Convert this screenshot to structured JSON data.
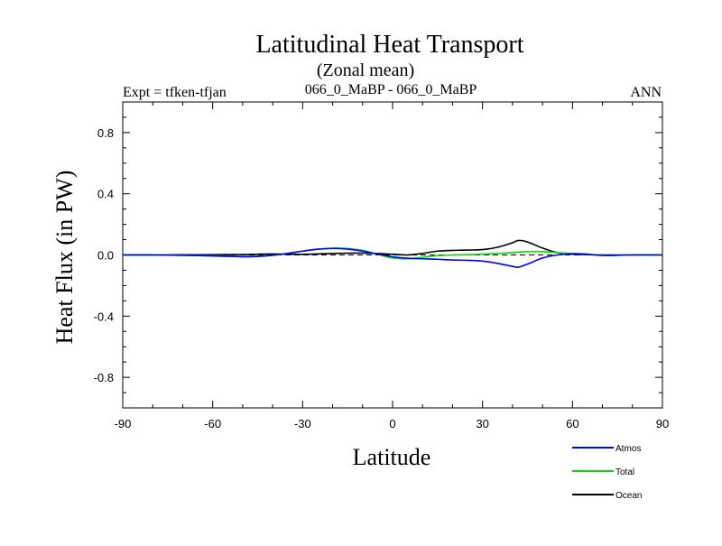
{
  "chart_data": {
    "type": "line",
    "title": "Latitudinal Heat Transport",
    "subtitle": "(Zonal mean)",
    "case_label": "066_0_MaBP - 066_0_MaBP",
    "expt_label": "Expt = tfken-tfjan",
    "season_label": "ANN",
    "xlabel": "Latitude",
    "ylabel": "Heat Flux (in PW)",
    "xlim": [
      -90,
      90
    ],
    "ylim": [
      -1.0,
      1.0
    ],
    "x_ticks": [
      -90,
      -60,
      -30,
      0,
      30,
      60,
      90
    ],
    "x_tick_labels": [
      "-90",
      "-60",
      "-30",
      "0",
      "30",
      "60",
      "90"
    ],
    "y_ticks": [
      -0.8,
      -0.4,
      0.0,
      0.4,
      0.8
    ],
    "y_tick_labels": [
      "-0.8",
      "-0.4",
      "0.0",
      "0.4",
      "0.8"
    ],
    "zero_line": "dashed",
    "legend_position": "bottom-right",
    "series": [
      {
        "name": "Atmos",
        "color": "#0000ff",
        "x": [
          -90,
          -80,
          -70,
          -60,
          -50,
          -45,
          -40,
          -35,
          -30,
          -25,
          -20,
          -15,
          -10,
          -5,
          0,
          5,
          10,
          15,
          20,
          25,
          30,
          35,
          40,
          42,
          45,
          50,
          55,
          60,
          65,
          70,
          80,
          90
        ],
        "y": [
          0,
          0,
          -0.003,
          -0.006,
          -0.012,
          -0.01,
          -0.002,
          0.01,
          0.025,
          0.037,
          0.042,
          0.038,
          0.025,
          0.005,
          -0.012,
          -0.022,
          -0.025,
          -0.028,
          -0.033,
          -0.035,
          -0.04,
          -0.055,
          -0.075,
          -0.08,
          -0.06,
          -0.02,
          0.0,
          0.008,
          0.005,
          -0.003,
          0,
          0
        ]
      },
      {
        "name": "Total",
        "color": "#00dd00",
        "x": [
          -90,
          -80,
          -70,
          -60,
          -50,
          -45,
          -40,
          -35,
          -30,
          -25,
          -20,
          -15,
          -10,
          -5,
          0,
          5,
          10,
          15,
          20,
          25,
          30,
          35,
          40,
          45,
          50,
          55,
          60,
          65,
          70,
          80,
          90
        ],
        "y": [
          0,
          0,
          -0.002,
          -0.005,
          -0.01,
          -0.008,
          -0.002,
          0.01,
          0.025,
          0.038,
          0.045,
          0.042,
          0.03,
          0.005,
          -0.02,
          -0.025,
          -0.015,
          -0.005,
          0.0,
          0.002,
          0.005,
          0.01,
          0.015,
          0.022,
          0.022,
          0.015,
          0.01,
          0.005,
          -0.003,
          0,
          0
        ]
      },
      {
        "name": "Ocean",
        "color": "#000000",
        "x": [
          -90,
          -80,
          -70,
          -60,
          -50,
          -45,
          -40,
          -30,
          -20,
          -10,
          0,
          5,
          10,
          15,
          20,
          25,
          30,
          35,
          40,
          42,
          45,
          50,
          55,
          60,
          65,
          70,
          80,
          90
        ],
        "y": [
          0,
          0,
          0.001,
          0.002,
          0.003,
          0.005,
          0.006,
          0.004,
          0.01,
          0.012,
          0.005,
          0.0,
          0.01,
          0.025,
          0.03,
          0.032,
          0.035,
          0.05,
          0.08,
          0.095,
          0.085,
          0.045,
          0.015,
          0.005,
          0.002,
          0.0,
          0,
          0
        ]
      }
    ]
  }
}
